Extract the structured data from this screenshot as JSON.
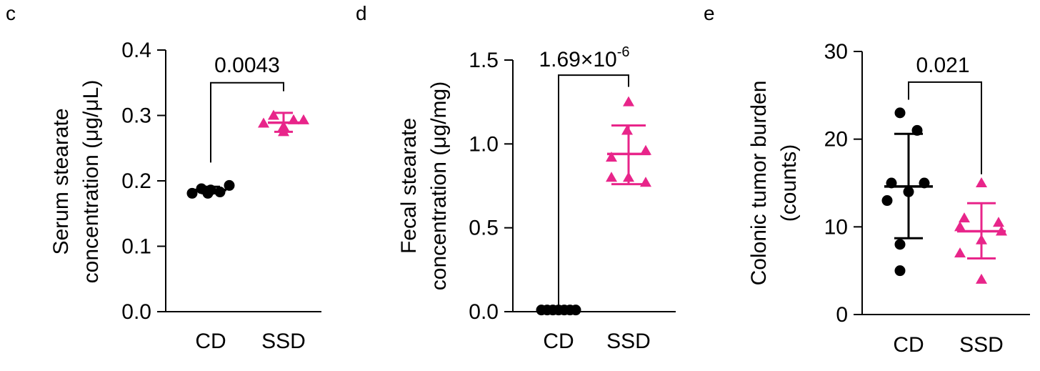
{
  "colors": {
    "CD": "#000000",
    "SSD": "#e8258a"
  },
  "chart_data": [
    {
      "panel": "c",
      "type": "scatter",
      "ylabel_lines": [
        "Serum stearate",
        "concentration (μg/μL)"
      ],
      "ylim": [
        0,
        0.4
      ],
      "yticks": [
        0,
        0.1,
        0.2,
        0.3,
        0.4
      ],
      "ytick_labels": [
        "0.0",
        "0.1",
        "0.2",
        "0.3",
        "0.4"
      ],
      "categories": [
        "CD",
        "SSD"
      ],
      "groups": [
        {
          "name": "CD",
          "marker": "circle",
          "values": [
            0.181,
            0.188,
            0.186,
            0.183,
            0.193,
            0.181
          ],
          "mean": 0.186,
          "sd_low": 0.181,
          "sd_high": 0.191
        },
        {
          "name": "SSD",
          "marker": "triangle",
          "values": [
            0.288,
            0.3,
            0.275,
            0.293,
            0.293,
            0.283
          ],
          "mean": 0.289,
          "sd_low": 0.275,
          "sd_high": 0.304
        }
      ],
      "significance": {
        "label": "0.0043",
        "label_base": "",
        "label_exp": "",
        "from": "CD",
        "to": "SSD",
        "bracket_y": 0.35,
        "drop_to": [
          0.228,
          0.337
        ]
      }
    },
    {
      "panel": "d",
      "type": "scatter",
      "ylabel_lines": [
        "Fecal stearate",
        "concentration (μg/mg)"
      ],
      "ylim": [
        0,
        1.5
      ],
      "yticks": [
        0,
        0.5,
        1.0,
        1.5
      ],
      "ytick_labels": [
        "0.0",
        "0.5",
        "1.0",
        "1.5"
      ],
      "categories": [
        "CD",
        "SSD"
      ],
      "groups": [
        {
          "name": "CD",
          "marker": "circle",
          "values": [
            0.01,
            0.01,
            0.01,
            0.01,
            0.01,
            0.01,
            0.01
          ],
          "mean": 0.01,
          "sd_low": 0.005,
          "sd_high": 0.015
        },
        {
          "name": "SSD",
          "marker": "triangle",
          "values": [
            1.25,
            1.08,
            0.92,
            0.96,
            0.8,
            0.8,
            0.77
          ],
          "mean": 0.94,
          "sd_low": 0.76,
          "sd_high": 1.11
        }
      ],
      "significance": {
        "label": "",
        "label_base": "1.69×10",
        "label_exp": "-6",
        "from": "CD",
        "to": "SSD",
        "bracket_y": 1.41,
        "drop_to": [
          0.04,
          1.34
        ]
      }
    },
    {
      "panel": "e",
      "type": "scatter",
      "ylabel_lines": [
        "Colonic tumor burden",
        "(counts)"
      ],
      "ylim": [
        0,
        30
      ],
      "yticks": [
        0,
        10,
        20,
        30
      ],
      "ytick_labels": [
        "0",
        "10",
        "20",
        "30"
      ],
      "categories": [
        "CD",
        "SSD"
      ],
      "groups": [
        {
          "name": "CD",
          "marker": "circle",
          "values": [
            23,
            21,
            15,
            15,
            14,
            13,
            8,
            5
          ],
          "mean": 14.6,
          "sd_low": 8.7,
          "sd_high": 20.6
        },
        {
          "name": "SSD",
          "marker": "triangle",
          "values": [
            15,
            11,
            10.5,
            10,
            9.5,
            8.5,
            7,
            4
          ],
          "mean": 9.5,
          "sd_low": 6.4,
          "sd_high": 12.7
        }
      ],
      "significance": {
        "label": "0.021",
        "label_base": "",
        "label_exp": "",
        "from": "CD",
        "to": "SSD",
        "bracket_y": 26.5,
        "drop_to": [
          24.5,
          16.0
        ]
      }
    }
  ]
}
